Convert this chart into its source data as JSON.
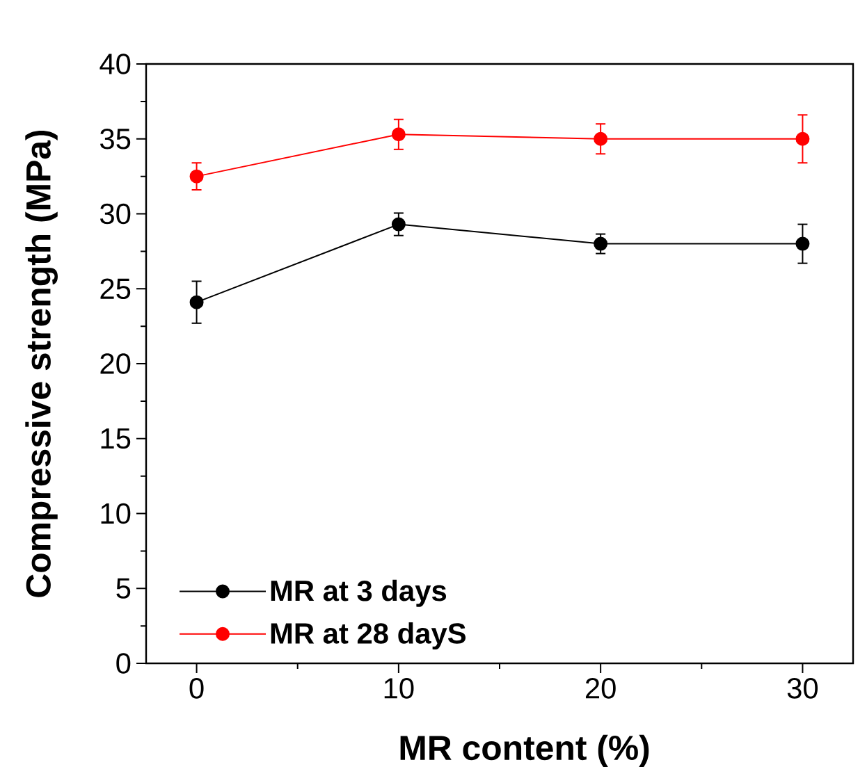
{
  "chart_data": {
    "type": "line",
    "xlabel": "MR content (%)",
    "ylabel": "Compressive strength (MPa)",
    "x": [
      0,
      10,
      20,
      30
    ],
    "series": [
      {
        "name": "MR at 3 days",
        "color": "#000000",
        "values": [
          24.1,
          29.3,
          28.0,
          28.0
        ],
        "errors": [
          1.4,
          0.75,
          0.65,
          1.3
        ]
      },
      {
        "name": "MR at 28 dayS",
        "color": "#ff0000",
        "values": [
          32.5,
          35.3,
          35.0,
          35.0
        ],
        "errors": [
          0.9,
          1.0,
          1.0,
          1.6
        ]
      }
    ],
    "xlim": [
      -2.5,
      32.5
    ],
    "ylim": [
      0,
      40
    ],
    "xticks": [
      0,
      10,
      20,
      30
    ],
    "yticks": [
      0,
      5,
      10,
      15,
      20,
      25,
      30,
      35,
      40
    ],
    "grid": false,
    "legend": "bottom left",
    "marker": "circle",
    "line_style": "solid"
  }
}
